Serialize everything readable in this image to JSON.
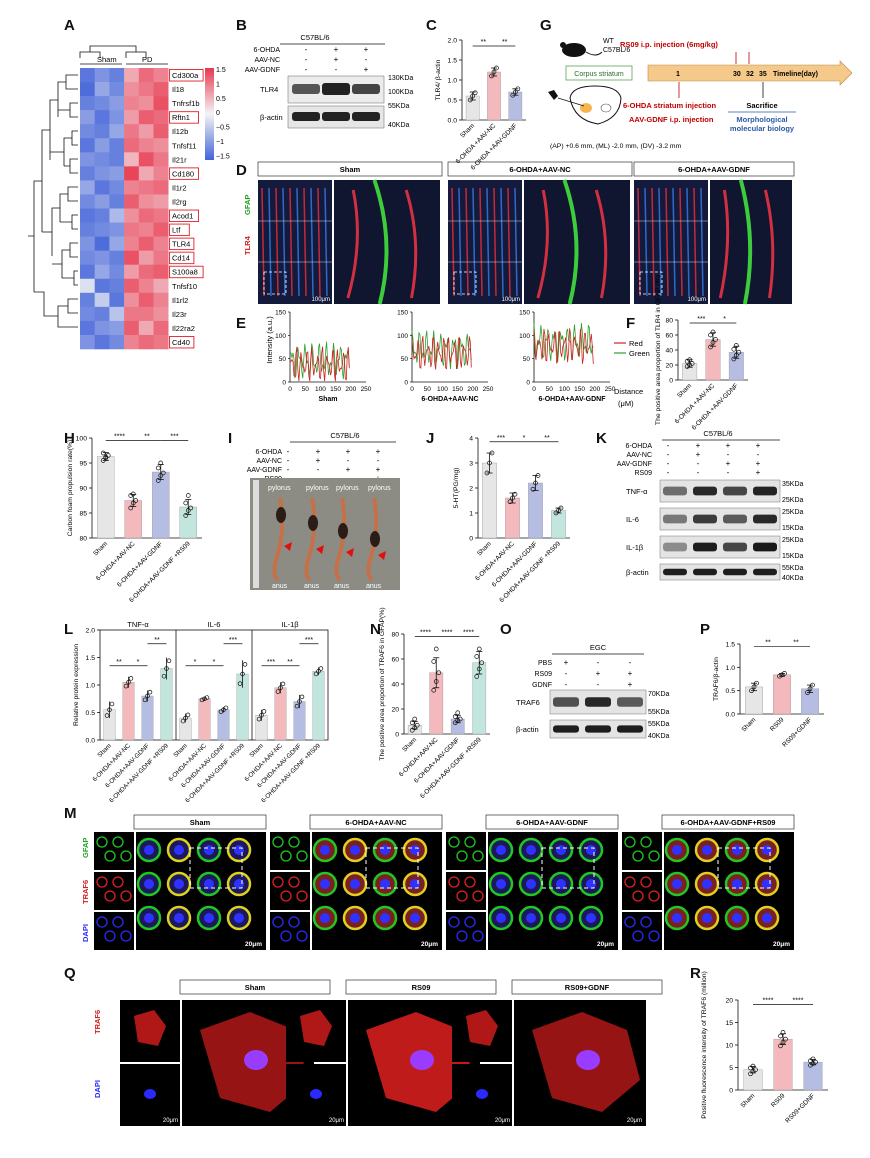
{
  "panels": {
    "A": "A",
    "B": "B",
    "C": "C",
    "D": "D",
    "E": "E",
    "F": "F",
    "G": "G",
    "H": "H",
    "I": "I",
    "J": "J",
    "K": "K",
    "L": "L",
    "M": "M",
    "N": "N",
    "O": "O",
    "P": "P",
    "Q": "Q",
    "R": "R"
  },
  "colors": {
    "sham": "#e6e6e6",
    "nc": "#f3b9bc",
    "gdnf": "#b6bde2",
    "rs09": "#c2e6dd",
    "heat_high": "#e8384f",
    "heat_mid": "#f4f4f4",
    "heat_low": "#4363d8",
    "green_fluor": "#22c822",
    "red_fluor": "#e02020",
    "blue_fluor": "#2a2aff",
    "timeline": "#f5c98a",
    "dark_red": "#c00000",
    "dark_blue": "#2a5aa6",
    "green_box": "#5aa35a"
  },
  "icons": {
    "mouse": "mouse-icon",
    "brain": "brain-section-icon",
    "arrow": "arrowhead-icon"
  },
  "A": {
    "group_labels": [
      "Sham",
      "PD"
    ],
    "scale_ticks": [
      "1.5",
      "1",
      "0.5",
      "0",
      "−0.5",
      "−1",
      "−1.5"
    ],
    "genes": [
      "Cd300a",
      "Il18",
      "Tnfrsf1b",
      "Rftn1",
      "Il12b",
      "Tnfsf11",
      "Il21r",
      "Cd180",
      "Il1r2",
      "Il2rg",
      "Acod1",
      "Ltf",
      "TLR4",
      "Cd14",
      "S100a8",
      "Tnfsf10",
      "Il1rl2",
      "Il23r",
      "Il22ra2",
      "Cd40"
    ],
    "boxed": [
      "Cd300a",
      "Rftn1",
      "Cd180",
      "Acod1",
      "Ltf",
      "TLR4",
      "Cd14",
      "S100a8",
      "Cd40"
    ],
    "matrix": [
      [
        -1.3,
        -1.0,
        -1.2,
        0.6,
        1.1,
        0.9
      ],
      [
        -1.4,
        -0.8,
        -1.1,
        0.8,
        1.0,
        1.2
      ],
      [
        -1.2,
        -1.1,
        -0.9,
        0.9,
        0.8,
        1.3
      ],
      [
        -0.9,
        -1.3,
        -1.0,
        0.7,
        1.2,
        1.1
      ],
      [
        -1.1,
        -1.2,
        -0.8,
        1.0,
        0.7,
        1.2
      ],
      [
        -1.3,
        -0.9,
        -1.2,
        1.1,
        0.9,
        0.8
      ],
      [
        -1.0,
        -1.1,
        -1.2,
        0.5,
        1.3,
        1.0
      ],
      [
        -1.2,
        -1.0,
        -0.9,
        1.4,
        0.6,
        0.9
      ],
      [
        -0.8,
        -1.3,
        -1.1,
        0.9,
        1.0,
        1.1
      ],
      [
        -1.1,
        -0.9,
        -1.2,
        1.2,
        0.8,
        0.7
      ],
      [
        -1.3,
        -1.2,
        -0.6,
        0.8,
        1.1,
        1.0
      ],
      [
        -1.2,
        -1.1,
        -1.0,
        1.0,
        0.9,
        1.2
      ],
      [
        -1.0,
        -1.4,
        -0.8,
        0.9,
        1.2,
        0.9
      ],
      [
        -1.1,
        -1.0,
        -1.2,
        1.3,
        0.7,
        1.0
      ],
      [
        -1.3,
        -0.8,
        -1.1,
        0.7,
        1.1,
        1.2
      ],
      [
        -0.2,
        -1.3,
        -1.2,
        1.2,
        0.9,
        0.6
      ],
      [
        -1.2,
        -0.4,
        -1.3,
        0.8,
        1.2,
        0.9
      ],
      [
        -1.1,
        -1.2,
        -0.5,
        1.0,
        1.0,
        0.8
      ],
      [
        -1.3,
        -1.0,
        -0.9,
        1.2,
        0.6,
        1.1
      ],
      [
        -1.0,
        -1.3,
        -1.1,
        0.9,
        1.1,
        1.0
      ]
    ]
  },
  "B": {
    "header": "C57BL/6",
    "rows": [
      {
        "label": "6-OHDA",
        "marks": [
          "-",
          "+",
          "+"
        ]
      },
      {
        "label": "AAV-NC",
        "marks": [
          "-",
          "+",
          "-"
        ]
      },
      {
        "label": "AAV-GDNF",
        "marks": [
          "-",
          "-",
          "+"
        ]
      }
    ],
    "blots": [
      {
        "name": "TLR4",
        "top": "130KDa",
        "bottom": "100KDa"
      },
      {
        "name": "β-actin",
        "top": "55KDa",
        "bottom": "40KDa"
      }
    ]
  },
  "C": {
    "ylabel": "TLR4/ β-actin",
    "yticks": [
      "0.0",
      "0.5",
      "1.0",
      "1.5",
      "2.0"
    ],
    "categories": [
      "Sham",
      "6-OHDA +AAV-NC",
      "6-OHDA +AAV-GDNF"
    ],
    "sig": [
      "**",
      "**"
    ]
  },
  "D": {
    "groups": [
      "Sham",
      "6-OHDA+AAV-NC",
      "6-OHDA+AAV-GDNF"
    ],
    "side_labels": [
      "GFAP",
      "TLR4"
    ],
    "scale": "100μm"
  },
  "E": {
    "ylabel": "Intensity (a.u.)",
    "yticks": [
      "0",
      "50",
      "100",
      "150"
    ],
    "xticks": [
      "0",
      "50",
      "100",
      "150",
      "200",
      "250"
    ],
    "xnames": [
      "Sham",
      "6-OHDA+AAV-NC",
      "6-OHDA+AAV-GDNF"
    ],
    "legend": [
      "Red",
      "Green"
    ],
    "xlabel": "Distance",
    "xunit": "(μM)"
  },
  "F": {
    "ylabel": "The positive area proportion of TLR4 in GFAP (%)",
    "yticks": [
      "0",
      "20",
      "40",
      "60",
      "80"
    ],
    "categories": [
      "Sham",
      "6-OHDA +AAV-NC",
      "6-OHDA +AAV-GDNF"
    ],
    "sig": [
      "***",
      "*"
    ]
  },
  "G": {
    "mouse_label": [
      "WT",
      "C57BL/6"
    ],
    "corpus_striatum": "Corpus striatum",
    "coords": "(AP) +0.6 mm, (ML) -2.0 mm, (DV) -3.2 mm",
    "rs09_text": "RS09 i.p. injection (6mg/kg)",
    "days": [
      "1",
      "30",
      "32",
      "35"
    ],
    "timeline_label": "Timeline(day)",
    "injection_1": "6-OHDA striatum injection",
    "injection_2": "AAV-GDNF i.p. injection",
    "sacrifice": "Sacrifice",
    "morph": [
      "Morphological",
      "molecular biology"
    ]
  },
  "H": {
    "ylabel": "Carbon foam propulsion rate(%)",
    "yticks": [
      "80",
      "85",
      "90",
      "95",
      "100"
    ],
    "categories": [
      "Sham",
      "6-OHDA+AAV-NC",
      "6-OHDA+AAV-GDNF",
      "6-OHDA+AAV-GDNF +RS09"
    ],
    "sig": [
      "****",
      "**",
      "***"
    ]
  },
  "I": {
    "header": "C57BL/6",
    "rows": [
      {
        "label": "6-OHDA",
        "marks": [
          "-",
          "+",
          "+",
          "+"
        ]
      },
      {
        "label": "AAV-NC",
        "marks": [
          "-",
          "+",
          "-",
          "-"
        ]
      },
      {
        "label": "AAV-GDNF",
        "marks": [
          "-",
          "-",
          "+",
          "+"
        ]
      },
      {
        "label": "RS09",
        "marks": [
          "-",
          "-",
          "-",
          "+"
        ]
      }
    ],
    "pylorus": [
      "pylorus",
      "pylorus",
      "pylorus",
      "pylorus"
    ],
    "anus": [
      "anus",
      "anus",
      "anus",
      "anus"
    ]
  },
  "J": {
    "ylabel": "5-HT(PG/mg)",
    "yticks": [
      "0",
      "1",
      "2",
      "3",
      "4"
    ],
    "categories": [
      "Sham",
      "6-OHDA+AAV-NC",
      "6-OHDA+AAV-GDNF",
      "6-OHDA+AAV-GDNF +RS09"
    ],
    "sig": [
      "***",
      "*",
      "**"
    ]
  },
  "K": {
    "header": "C57BL/6",
    "rows": [
      {
        "label": "6-OHDA",
        "marks": [
          "-",
          "+",
          "+",
          "+"
        ]
      },
      {
        "label": "AAV-NC",
        "marks": [
          "-",
          "+",
          "-",
          "-"
        ]
      },
      {
        "label": "AAV-GDNF",
        "marks": [
          "-",
          "-",
          "+",
          "+"
        ]
      },
      {
        "label": "RS09",
        "marks": [
          "-",
          "-",
          "-",
          "+"
        ]
      }
    ],
    "blots": [
      {
        "name": "TNF-α",
        "top": "35KDa",
        "bottom": "25KDa"
      },
      {
        "name": "IL-6",
        "top": "25KDa",
        "bottom": "15KDa"
      },
      {
        "name": "IL-1β",
        "top": "25KDa",
        "bottom": "15KDa"
      },
      {
        "name": "β-actin",
        "top": "55KDa",
        "bottom": "40KDa"
      }
    ]
  },
  "L": {
    "ylabel": "Relative protein expression",
    "yticks": [
      "0.0",
      "0.5",
      "1.0",
      "1.5",
      "2.0"
    ],
    "groups": [
      "TNF-α",
      "IL-6",
      "IL-1β"
    ],
    "categories": [
      "Sham",
      "6-OHDA+AAV-NC",
      "6-OHDA+AAV-GDNF",
      "6-OHDA+AAV-GDNF +RS09"
    ],
    "sig": [
      [
        "**",
        "*",
        "**"
      ],
      [
        "*",
        "*",
        "***"
      ],
      [
        "***",
        "**",
        "***"
      ]
    ]
  },
  "M": {
    "groups": [
      "Sham",
      "6-OHDA+AAV-NC",
      "6-OHDA+AAV-GDNF",
      "6-OHDA+AAV-GDNF+RS09"
    ],
    "side_labels": [
      "GFAP",
      "TRAF6",
      "DAPI"
    ],
    "scale": "20μm"
  },
  "N": {
    "ylabel": "The positive area proportion of TRAF6 in GFAP(%)",
    "yticks": [
      "0",
      "20",
      "40",
      "60",
      "80"
    ],
    "categories": [
      "Sham",
      "6-OHDA+AAV-NC",
      "6-OHDA+AAV-GDNF",
      "6-OHDA+AAV-GDNF +RS09"
    ],
    "sig": [
      "****",
      "****",
      "****"
    ]
  },
  "O": {
    "header": "EGC",
    "rows": [
      {
        "label": "PBS",
        "marks": [
          "+",
          "-",
          "-"
        ]
      },
      {
        "label": "RS09",
        "marks": [
          "-",
          "+",
          "+"
        ]
      },
      {
        "label": "GDNF",
        "marks": [
          "-",
          "-",
          "+"
        ]
      }
    ],
    "blots": [
      {
        "name": "TRAF6",
        "top": "70KDa",
        "bottom": "55KDa"
      },
      {
        "name": "β-actin",
        "top": "55KDa",
        "bottom": "40KDa"
      }
    ]
  },
  "P": {
    "ylabel": "TRAF6/β-actin",
    "yticks": [
      "0.0",
      "0.5",
      "1.0",
      "1.5"
    ],
    "categories": [
      "Sham",
      "RS09",
      "RS09+GDNF"
    ],
    "sig": [
      "**",
      "**"
    ]
  },
  "Q": {
    "groups": [
      "Sham",
      "RS09",
      "RS09+GDNF"
    ],
    "side_labels": [
      "TRAF6",
      "DAPI"
    ],
    "scale": "20μm"
  },
  "R": {
    "ylabel": "Positive fluorescence intensity of TRAF6 (million)",
    "yticks": [
      "0",
      "5",
      "10",
      "15",
      "20"
    ],
    "categories": [
      "Sham",
      "RS09",
      "RS09+GDNF"
    ],
    "sig": [
      "****",
      "****"
    ]
  },
  "chart_data": [
    {
      "panel": "C",
      "type": "bar",
      "categories": [
        "Sham",
        "6-OHDA +AAV-NC",
        "6-OHDA +AAV-GDNF"
      ],
      "values": [
        0.6,
        1.2,
        0.7
      ],
      "errors": [
        0.1,
        0.1,
        0.08
      ],
      "points": [
        [
          0.5,
          0.6,
          0.68
        ],
        [
          1.1,
          1.2,
          1.3
        ],
        [
          0.62,
          0.7,
          0.78
        ]
      ],
      "ylabel": "TLR4/ β-actin",
      "ylim": [
        0,
        2
      ]
    },
    {
      "panel": "F",
      "type": "bar",
      "categories": [
        "Sham",
        "6-OHDA +AAV-NC",
        "6-OHDA +AAV-GDNF"
      ],
      "values": [
        22,
        54,
        37
      ],
      "errors": [
        5,
        9,
        8
      ],
      "points": [
        [
          18,
          20,
          22,
          25,
          27
        ],
        [
          44,
          50,
          54,
          60,
          64
        ],
        [
          28,
          33,
          37,
          41,
          46
        ]
      ],
      "ylabel": "The positive area proportion of TLR4 in GFAP (%)",
      "ylim": [
        0,
        80
      ]
    },
    {
      "panel": "H",
      "type": "bar",
      "categories": [
        "Sham",
        "6-OHDA+AAV-NC",
        "6-OHDA+AAV-GDNF",
        "6-OHDA+AAV-GDNF +RS09"
      ],
      "values": [
        96.3,
        87.5,
        93.2,
        86.2
      ],
      "errors": [
        0.8,
        1.2,
        1.5,
        1.5
      ],
      "points": [
        [
          95.5,
          96,
          96.5,
          97,
          96.2
        ],
        [
          86,
          87,
          87.5,
          88.5,
          88.8
        ],
        [
          91.5,
          92.5,
          93,
          94,
          95
        ],
        [
          84.5,
          85.5,
          86,
          87,
          88.5
        ]
      ],
      "ylabel": "Carbon foam propulsion rate(%)",
      "ylim": [
        80,
        100
      ]
    },
    {
      "panel": "J",
      "type": "bar",
      "categories": [
        "Sham",
        "6-OHDA+AAV-NC",
        "6-OHDA+AAV-GDNF",
        "6-OHDA+AAV-GDNF +RS09"
      ],
      "values": [
        3.0,
        1.6,
        2.2,
        1.1
      ],
      "errors": [
        0.4,
        0.2,
        0.3,
        0.1
      ],
      "points": [
        [
          2.6,
          3.0,
          3.4
        ],
        [
          1.45,
          1.6,
          1.75
        ],
        [
          1.95,
          2.2,
          2.5
        ],
        [
          1.0,
          1.1,
          1.2
        ]
      ],
      "ylabel": "5-HT(PG/mg)",
      "ylim": [
        0,
        4
      ]
    },
    {
      "panel": "L",
      "type": "bar",
      "groups": [
        "TNF-α",
        "IL-6",
        "IL-1β"
      ],
      "categories": [
        "Sham",
        "6-OHDA+AAV-NC",
        "6-OHDA+AAV-GDNF",
        "6-OHDA+AAV-GDNF +RS09"
      ],
      "series": [
        {
          "name": "TNF-α",
          "values": [
            0.55,
            1.05,
            0.8,
            1.3
          ],
          "errors": [
            0.15,
            0.1,
            0.1,
            0.2
          ]
        },
        {
          "name": "IL-6",
          "values": [
            0.4,
            0.75,
            0.55,
            1.2
          ],
          "errors": [
            0.08,
            0.03,
            0.05,
            0.25
          ]
        },
        {
          "name": "IL-1β",
          "values": [
            0.45,
            0.95,
            0.7,
            1.25
          ],
          "errors": [
            0.1,
            0.1,
            0.12,
            0.07
          ]
        }
      ],
      "ylabel": "Relative protein expression",
      "ylim": [
        0,
        2
      ]
    },
    {
      "panel": "N",
      "type": "bar",
      "categories": [
        "Sham",
        "6-OHDA+AAV-NC",
        "6-OHDA+AAV-GDNF",
        "6-OHDA+AAV-GDNF +RS09"
      ],
      "values": [
        7,
        49,
        12,
        57
      ],
      "errors": [
        3,
        12,
        3,
        9
      ],
      "points": [
        [
          3,
          5,
          7,
          9,
          12
        ],
        [
          35,
          42,
          49,
          58,
          68
        ],
        [
          9,
          11,
          12,
          14,
          17
        ],
        [
          46,
          52,
          57,
          62,
          68
        ]
      ],
      "ylabel": "The positive area proportion of TRAF6 in GFAP(%)",
      "ylim": [
        0,
        80
      ]
    },
    {
      "panel": "P",
      "type": "bar",
      "categories": [
        "Sham",
        "RS09",
        "RS09+GDNF"
      ],
      "values": [
        0.58,
        0.84,
        0.54
      ],
      "errors": [
        0.08,
        0.03,
        0.08
      ],
      "points": [
        [
          0.5,
          0.58,
          0.66
        ],
        [
          0.81,
          0.84,
          0.87
        ],
        [
          0.46,
          0.54,
          0.62
        ]
      ],
      "ylabel": "TRAF6/β-actin",
      "ylim": [
        0,
        1.5
      ]
    },
    {
      "panel": "R",
      "type": "bar",
      "categories": [
        "Sham",
        "RS09",
        "RS09+GDNF"
      ],
      "values": [
        4.5,
        11.3,
        6.2
      ],
      "errors": [
        0.7,
        1.2,
        0.6
      ],
      "points": [
        [
          3.6,
          4.2,
          4.5,
          4.9,
          5.3
        ],
        [
          9.8,
          10.6,
          11.3,
          12.0,
          12.8
        ],
        [
          5.5,
          5.9,
          6.2,
          6.5,
          6.9
        ]
      ],
      "ylabel": "Positive fluorescence intensity of TRAF6 (million)",
      "ylim": [
        0,
        20
      ]
    },
    {
      "panel": "E",
      "type": "line",
      "x_range": [
        0,
        250
      ],
      "ylim": [
        0,
        150
      ],
      "legend": [
        "Red",
        "Green"
      ],
      "ylabel": "Intensity (a.u.)",
      "xlabel": "Distance (μM)"
    }
  ]
}
